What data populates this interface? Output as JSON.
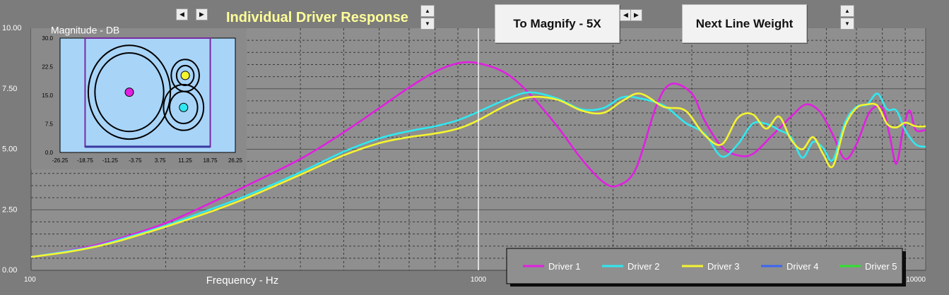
{
  "controls": {
    "title": "Individual Driver Response",
    "magnify_label": "To Magnify - 5X",
    "line_weight_label": "Next Line Weight",
    "left_glyph": "◀",
    "right_glyph": "▶",
    "up_glyph": "▲",
    "down_glyph": "▼"
  },
  "colors": {
    "background": "#7c7c7c",
    "plot_area": "#8f8f8f",
    "inset_bg": "#a8d4f8",
    "title": "#ffff99",
    "driver1": "#e020e0",
    "driver2": "#30e8f0",
    "driver3": "#f4f430",
    "driver4": "#3a66f0",
    "driver5": "#30e030"
  },
  "chart_data": [
    {
      "type": "line",
      "xlabel": "Frequency  -  Hz",
      "ylabel": "Magnitude  -  DB",
      "x_scale": "log",
      "xlim": [
        100,
        10000
      ],
      "ylim": [
        0,
        10
      ],
      "x_tick_labels": [
        "100",
        "1000",
        "10000"
      ],
      "y_tick_labels": [
        "0.00",
        "2.50",
        "5.00",
        "7.50",
        "10.00"
      ],
      "grid": true,
      "legend_position": "bottom-right",
      "marker_frequency": 1000,
      "series": [
        {
          "name": "Driver 1",
          "color": "#e020e0",
          "x": [
            100,
            120,
            140,
            160,
            200,
            250,
            300,
            400,
            500,
            600,
            700,
            800,
            900,
            1000,
            1150,
            1300,
            1500,
            1700,
            1900,
            2050,
            2250,
            2500,
            2700,
            3000,
            3200,
            3500,
            3800,
            4100,
            4500,
            5000,
            5400,
            5800,
            6200,
            6600,
            7000,
            7500,
            8000,
            8300,
            8600,
            8900,
            9200,
            9500,
            10000
          ],
          "y": [
            0.55,
            0.8,
            1.05,
            1.35,
            1.95,
            2.75,
            3.45,
            4.6,
            5.7,
            6.7,
            7.55,
            8.2,
            8.55,
            8.55,
            8.15,
            7.3,
            5.95,
            4.6,
            3.65,
            3.5,
            4.2,
            6.8,
            7.7,
            7.3,
            6.2,
            5.1,
            4.75,
            4.8,
            5.5,
            6.35,
            6.85,
            6.55,
            5.6,
            4.6,
            5.2,
            6.55,
            6.7,
            5.6,
            4.4,
            5.8,
            6.6,
            5.8,
            5.8
          ]
        },
        {
          "name": "Driver 2",
          "color": "#30e8f0",
          "x": [
            100,
            120,
            140,
            160,
            200,
            250,
            300,
            400,
            500,
            600,
            700,
            800,
            900,
            1000,
            1150,
            1300,
            1500,
            1700,
            1900,
            2100,
            2300,
            2600,
            2900,
            3200,
            3500,
            3800,
            4100,
            4400,
            4700,
            5000,
            5300,
            5600,
            5900,
            6200,
            6600,
            7000,
            7400,
            7800,
            8200,
            8600,
            9000,
            9500,
            10000
          ],
          "y": [
            0.55,
            0.78,
            1.0,
            1.3,
            1.85,
            2.5,
            3.05,
            4.05,
            4.9,
            5.45,
            5.75,
            5.95,
            6.2,
            6.55,
            7.05,
            7.35,
            7.1,
            6.65,
            6.7,
            7.15,
            7.1,
            6.8,
            6.1,
            5.65,
            4.7,
            5.2,
            6.05,
            6.05,
            5.8,
            5.5,
            4.65,
            5.3,
            5.05,
            4.55,
            6.1,
            6.75,
            6.85,
            7.3,
            6.65,
            6.6,
            5.8,
            5.2,
            5.1
          ]
        },
        {
          "name": "Driver 3",
          "color": "#f4f430",
          "x": [
            100,
            120,
            140,
            160,
            200,
            250,
            300,
            400,
            500,
            600,
            700,
            800,
            900,
            1000,
            1150,
            1300,
            1500,
            1700,
            1900,
            2100,
            2300,
            2600,
            2900,
            3200,
            3500,
            3800,
            4100,
            4400,
            4700,
            5000,
            5300,
            5600,
            5900,
            6200,
            6600,
            7000,
            7400,
            7800,
            8200,
            8600,
            9000,
            9500,
            10000
          ],
          "y": [
            0.55,
            0.75,
            0.98,
            1.25,
            1.8,
            2.4,
            2.95,
            3.95,
            4.75,
            5.25,
            5.5,
            5.65,
            5.85,
            6.2,
            6.8,
            7.15,
            7.05,
            6.6,
            6.5,
            7.0,
            7.3,
            6.75,
            6.6,
            5.6,
            5.2,
            6.3,
            6.45,
            5.85,
            6.35,
            5.4,
            5.0,
            5.5,
            4.8,
            4.3,
            5.95,
            6.7,
            6.85,
            6.8,
            6.05,
            5.9,
            6.1,
            5.95,
            5.95
          ]
        },
        {
          "name": "Driver 4",
          "color": "#3a66f0",
          "x": [],
          "y": []
        },
        {
          "name": "Driver 5",
          "color": "#30e030",
          "x": [],
          "y": []
        }
      ]
    },
    {
      "type": "scatter",
      "x_tick_labels": [
        "-26.25",
        "-18.75",
        "-11.25",
        "-3.75",
        "3.75",
        "11.25",
        "18.75",
        "26.25"
      ],
      "y_tick_labels": [
        "0.0",
        "7.5",
        "15.0",
        "22.5",
        "30.0"
      ],
      "xlim": [
        -26.25,
        26.25
      ],
      "ylim": [
        0,
        30
      ],
      "baffle": {
        "x": [
          -18.75,
          18.75
        ],
        "y": [
          1.5,
          30
        ]
      },
      "drivers": [
        {
          "name": "Driver 1",
          "x": -5.5,
          "y": 15.8,
          "dot_color": "#e020e0",
          "ring_radii": [
            12.3,
            10.3
          ]
        },
        {
          "name": "Driver 3",
          "x": 11.25,
          "y": 20.2,
          "dot_color": "#f4f430",
          "ring_radii": [
            4.2,
            2.6
          ]
        },
        {
          "name": "Driver 2",
          "x": 10.75,
          "y": 11.8,
          "dot_color": "#30e8f0",
          "ring_radii": [
            6.0,
            4.2
          ]
        }
      ]
    }
  ]
}
